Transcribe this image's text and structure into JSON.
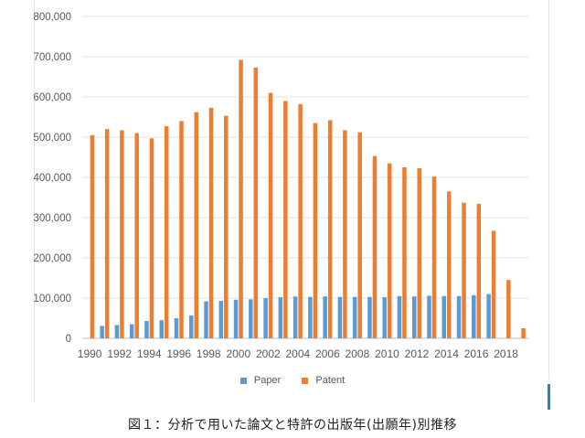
{
  "chart_data": {
    "type": "bar",
    "categories": [
      "1990",
      "1991",
      "1992",
      "1993",
      "1994",
      "1995",
      "1996",
      "1997",
      "1998",
      "1999",
      "2000",
      "2001",
      "2002",
      "2003",
      "2004",
      "2005",
      "2006",
      "2007",
      "2008",
      "2009",
      "2010",
      "2011",
      "2012",
      "2013",
      "2014",
      "2015",
      "2016",
      "2017",
      "2018",
      "2019"
    ],
    "x_tick_labels": [
      "1990",
      "1992",
      "1994",
      "1996",
      "1998",
      "2000",
      "2002",
      "2004",
      "2006",
      "2008",
      "2010",
      "2012",
      "2014",
      "2016",
      "2018"
    ],
    "series": [
      {
        "name": "Paper",
        "color": "#5b9bd5",
        "values": [
          0,
          31000,
          33000,
          35000,
          43000,
          45000,
          50000,
          57000,
          92000,
          93000,
          96000,
          97000,
          100000,
          102000,
          104000,
          103000,
          104000,
          103000,
          103000,
          103000,
          102000,
          105000,
          104000,
          106000,
          105000,
          105000,
          107000,
          110000,
          0,
          0
        ]
      },
      {
        "name": "Patent",
        "color": "#ed7d31",
        "values": [
          505000,
          520000,
          517000,
          510000,
          497000,
          527000,
          540000,
          562000,
          573000,
          553000,
          692000,
          673000,
          610000,
          590000,
          582000,
          535000,
          542000,
          517000,
          512000,
          453000,
          435000,
          425000,
          423000,
          402000,
          365000,
          337000,
          334000,
          267000,
          145000,
          25000
        ]
      }
    ],
    "yticks": [
      "0",
      "100,000",
      "200,000",
      "300,000",
      "400,000",
      "500,000",
      "600,000",
      "700,000",
      "800,000"
    ],
    "ylim": [
      0,
      800000
    ],
    "grid": true,
    "legend_position": "bottom"
  },
  "legend": {
    "paper_label": "Paper",
    "patent_label": "Patent"
  },
  "caption": "図１：分析で用いた論文と特許の出版年(出願年)別推移"
}
